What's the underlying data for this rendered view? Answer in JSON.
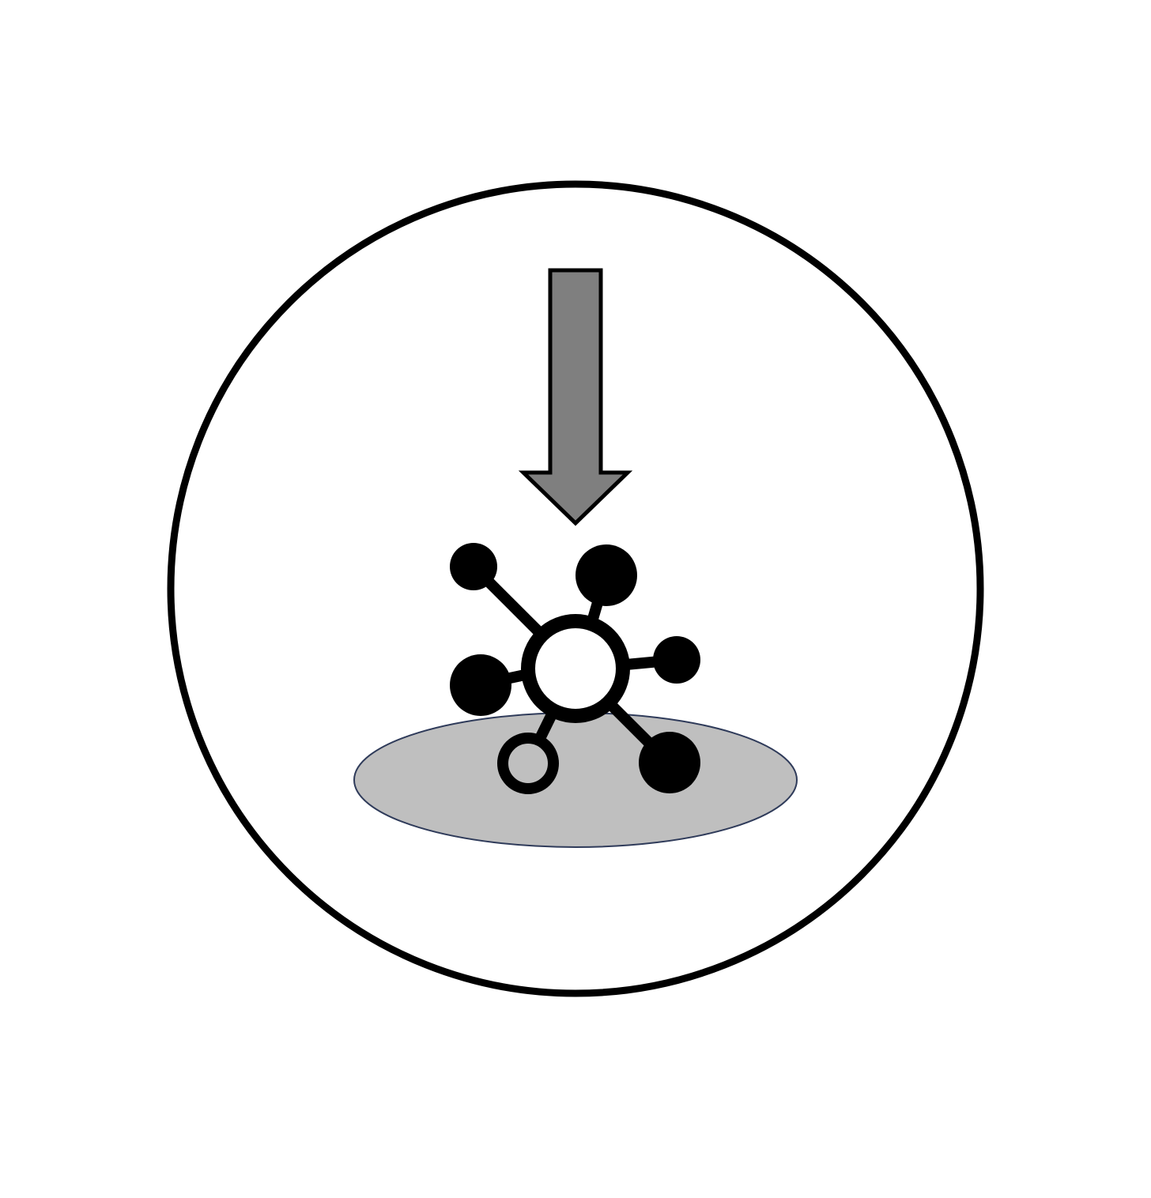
{
  "diagram": {
    "icons": {
      "outer_circle": "circle-frame",
      "arrow": "down-arrow-icon",
      "molecule": "molecule-icon",
      "surface": "surface-ellipse"
    },
    "colors": {
      "background": "#ffffff",
      "stroke": "#000000",
      "arrow_fill": "#7f7f7f",
      "surface_fill": "#bfbfbf",
      "surface_stroke": "#2f3b5a",
      "hub_fill": "#ffffff",
      "node_fill": "#000000"
    }
  }
}
